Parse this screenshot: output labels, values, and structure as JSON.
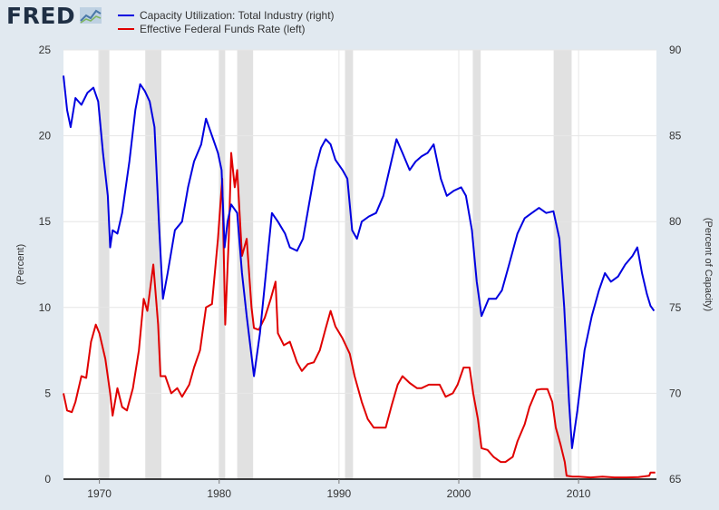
{
  "logo": {
    "text": "FRED"
  },
  "chart_data": {
    "type": "line",
    "grid": true,
    "legend_position": "top-left",
    "x_ticks": [
      1970,
      1980,
      1990,
      2000,
      2010
    ],
    "x_range": [
      1967.0,
      2016.5
    ],
    "left_axis": {
      "label": "(Percent)",
      "range": [
        0,
        25
      ],
      "ticks": [
        0,
        5,
        10,
        15,
        20,
        25
      ]
    },
    "right_axis": {
      "label": "(Percent of Capacity)",
      "range": [
        65,
        90
      ],
      "ticks": [
        65,
        70,
        75,
        80,
        85,
        90
      ]
    },
    "recessions": [
      [
        1969.92,
        1970.83
      ],
      [
        1973.83,
        1975.17
      ],
      [
        1980.0,
        1980.5
      ],
      [
        1981.5,
        1982.83
      ],
      [
        1990.5,
        1991.17
      ],
      [
        2001.17,
        2001.83
      ],
      [
        2007.92,
        2009.42
      ]
    ],
    "series": [
      {
        "name": "Capacity Utilization: Total Industry (right)",
        "axis": "right",
        "color": "#0000e0",
        "points": [
          [
            1967.0,
            88.5
          ],
          [
            1967.3,
            86.5
          ],
          [
            1967.6,
            85.5
          ],
          [
            1968.0,
            87.2
          ],
          [
            1968.5,
            86.8
          ],
          [
            1969.0,
            87.5
          ],
          [
            1969.5,
            87.8
          ],
          [
            1969.9,
            87.0
          ],
          [
            1970.3,
            84.0
          ],
          [
            1970.7,
            81.5
          ],
          [
            1970.9,
            78.5
          ],
          [
            1971.1,
            79.5
          ],
          [
            1971.5,
            79.3
          ],
          [
            1971.9,
            80.5
          ],
          [
            1972.5,
            83.5
          ],
          [
            1973.0,
            86.5
          ],
          [
            1973.4,
            88.0
          ],
          [
            1973.8,
            87.6
          ],
          [
            1974.2,
            87.0
          ],
          [
            1974.6,
            85.5
          ],
          [
            1975.0,
            79.5
          ],
          [
            1975.3,
            75.5
          ],
          [
            1975.7,
            77.0
          ],
          [
            1976.3,
            79.5
          ],
          [
            1976.9,
            80.0
          ],
          [
            1977.4,
            82.0
          ],
          [
            1977.9,
            83.5
          ],
          [
            1978.5,
            84.5
          ],
          [
            1978.9,
            86.0
          ],
          [
            1979.4,
            85.0
          ],
          [
            1979.9,
            84.0
          ],
          [
            1980.2,
            83.0
          ],
          [
            1980.45,
            78.5
          ],
          [
            1980.7,
            80.0
          ],
          [
            1981.0,
            81.0
          ],
          [
            1981.5,
            80.5
          ],
          [
            1981.9,
            77.0
          ],
          [
            1982.3,
            74.5
          ],
          [
            1982.9,
            71.0
          ],
          [
            1983.4,
            73.5
          ],
          [
            1983.9,
            77.0
          ],
          [
            1984.4,
            80.5
          ],
          [
            1984.9,
            80.0
          ],
          [
            1985.5,
            79.3
          ],
          [
            1985.9,
            78.5
          ],
          [
            1986.5,
            78.3
          ],
          [
            1987.0,
            79.0
          ],
          [
            1987.5,
            81.0
          ],
          [
            1988.0,
            83.0
          ],
          [
            1988.5,
            84.3
          ],
          [
            1988.9,
            84.8
          ],
          [
            1989.3,
            84.5
          ],
          [
            1989.7,
            83.6
          ],
          [
            1990.3,
            83.0
          ],
          [
            1990.7,
            82.5
          ],
          [
            1991.1,
            79.5
          ],
          [
            1991.5,
            79.0
          ],
          [
            1991.9,
            80.0
          ],
          [
            1992.5,
            80.3
          ],
          [
            1993.1,
            80.5
          ],
          [
            1993.7,
            81.5
          ],
          [
            1994.2,
            83.0
          ],
          [
            1994.8,
            84.8
          ],
          [
            1995.3,
            84.0
          ],
          [
            1995.9,
            83.0
          ],
          [
            1996.4,
            83.5
          ],
          [
            1996.9,
            83.8
          ],
          [
            1997.4,
            84.0
          ],
          [
            1997.9,
            84.5
          ],
          [
            1998.5,
            82.5
          ],
          [
            1999.0,
            81.5
          ],
          [
            1999.6,
            81.8
          ],
          [
            2000.2,
            82.0
          ],
          [
            2000.6,
            81.5
          ],
          [
            2001.1,
            79.5
          ],
          [
            2001.5,
            76.5
          ],
          [
            2001.9,
            74.5
          ],
          [
            2002.5,
            75.5
          ],
          [
            2003.1,
            75.5
          ],
          [
            2003.6,
            76.0
          ],
          [
            2004.2,
            77.5
          ],
          [
            2004.9,
            79.3
          ],
          [
            2005.5,
            80.2
          ],
          [
            2006.1,
            80.5
          ],
          [
            2006.7,
            80.8
          ],
          [
            2007.3,
            80.5
          ],
          [
            2007.9,
            80.6
          ],
          [
            2008.4,
            79.0
          ],
          [
            2008.8,
            75.0
          ],
          [
            2009.2,
            69.5
          ],
          [
            2009.45,
            66.8
          ],
          [
            2009.9,
            69.0
          ],
          [
            2010.5,
            72.5
          ],
          [
            2011.1,
            74.5
          ],
          [
            2011.7,
            76.0
          ],
          [
            2012.2,
            77.0
          ],
          [
            2012.7,
            76.5
          ],
          [
            2013.3,
            76.8
          ],
          [
            2013.9,
            77.5
          ],
          [
            2014.5,
            78.0
          ],
          [
            2014.9,
            78.5
          ],
          [
            2015.3,
            77.0
          ],
          [
            2015.7,
            75.8
          ],
          [
            2016.0,
            75.1
          ],
          [
            2016.3,
            74.8
          ]
        ]
      },
      {
        "name": "Effective Federal Funds Rate (left)",
        "axis": "left",
        "color": "#e00000",
        "points": [
          [
            1967.0,
            5.0
          ],
          [
            1967.3,
            4.0
          ],
          [
            1967.7,
            3.9
          ],
          [
            1968.0,
            4.5
          ],
          [
            1968.5,
            6.0
          ],
          [
            1968.9,
            5.9
          ],
          [
            1969.3,
            8.0
          ],
          [
            1969.7,
            9.0
          ],
          [
            1970.0,
            8.5
          ],
          [
            1970.5,
            7.0
          ],
          [
            1970.9,
            5.0
          ],
          [
            1971.1,
            3.7
          ],
          [
            1971.5,
            5.3
          ],
          [
            1971.9,
            4.2
          ],
          [
            1972.3,
            4.0
          ],
          [
            1972.8,
            5.3
          ],
          [
            1973.3,
            7.5
          ],
          [
            1973.7,
            10.5
          ],
          [
            1974.0,
            9.8
          ],
          [
            1974.5,
            12.5
          ],
          [
            1974.9,
            9.0
          ],
          [
            1975.1,
            6.0
          ],
          [
            1975.5,
            6.0
          ],
          [
            1976.0,
            5.0
          ],
          [
            1976.5,
            5.3
          ],
          [
            1976.9,
            4.8
          ],
          [
            1977.5,
            5.5
          ],
          [
            1977.9,
            6.5
          ],
          [
            1978.4,
            7.5
          ],
          [
            1978.9,
            10.0
          ],
          [
            1979.4,
            10.2
          ],
          [
            1979.9,
            14.0
          ],
          [
            1980.25,
            17.5
          ],
          [
            1980.5,
            9.0
          ],
          [
            1980.8,
            14.0
          ],
          [
            1981.0,
            19.0
          ],
          [
            1981.3,
            17.0
          ],
          [
            1981.5,
            18.0
          ],
          [
            1981.9,
            13.0
          ],
          [
            1982.3,
            14.0
          ],
          [
            1982.7,
            10.0
          ],
          [
            1982.9,
            8.8
          ],
          [
            1983.3,
            8.7
          ],
          [
            1983.8,
            9.4
          ],
          [
            1984.3,
            10.5
          ],
          [
            1984.7,
            11.5
          ],
          [
            1984.9,
            8.5
          ],
          [
            1985.4,
            7.8
          ],
          [
            1985.9,
            8.0
          ],
          [
            1986.5,
            6.8
          ],
          [
            1986.9,
            6.3
          ],
          [
            1987.4,
            6.7
          ],
          [
            1987.9,
            6.8
          ],
          [
            1988.4,
            7.5
          ],
          [
            1988.9,
            8.8
          ],
          [
            1989.3,
            9.8
          ],
          [
            1989.7,
            8.9
          ],
          [
            1990.3,
            8.2
          ],
          [
            1990.9,
            7.3
          ],
          [
            1991.3,
            6.0
          ],
          [
            1991.9,
            4.5
          ],
          [
            1992.4,
            3.5
          ],
          [
            1992.9,
            3.0
          ],
          [
            1993.5,
            3.0
          ],
          [
            1993.9,
            3.0
          ],
          [
            1994.4,
            4.3
          ],
          [
            1994.9,
            5.5
          ],
          [
            1995.3,
            6.0
          ],
          [
            1995.9,
            5.6
          ],
          [
            1996.5,
            5.3
          ],
          [
            1996.9,
            5.3
          ],
          [
            1997.5,
            5.5
          ],
          [
            1997.9,
            5.5
          ],
          [
            1998.4,
            5.5
          ],
          [
            1998.9,
            4.8
          ],
          [
            1999.5,
            5.0
          ],
          [
            1999.9,
            5.5
          ],
          [
            2000.4,
            6.5
          ],
          [
            2000.9,
            6.5
          ],
          [
            2001.2,
            5.0
          ],
          [
            2001.6,
            3.5
          ],
          [
            2001.9,
            1.8
          ],
          [
            2002.4,
            1.7
          ],
          [
            2002.9,
            1.3
          ],
          [
            2003.5,
            1.0
          ],
          [
            2003.9,
            1.0
          ],
          [
            2004.5,
            1.3
          ],
          [
            2004.9,
            2.2
          ],
          [
            2005.5,
            3.2
          ],
          [
            2005.9,
            4.2
          ],
          [
            2006.5,
            5.2
          ],
          [
            2006.9,
            5.25
          ],
          [
            2007.4,
            5.25
          ],
          [
            2007.8,
            4.5
          ],
          [
            2008.1,
            3.0
          ],
          [
            2008.5,
            2.0
          ],
          [
            2008.85,
            1.0
          ],
          [
            2009.0,
            0.2
          ],
          [
            2009.5,
            0.15
          ],
          [
            2010.0,
            0.15
          ],
          [
            2011.0,
            0.1
          ],
          [
            2012.0,
            0.15
          ],
          [
            2013.0,
            0.1
          ],
          [
            2014.0,
            0.1
          ],
          [
            2015.0,
            0.12
          ],
          [
            2015.9,
            0.2
          ],
          [
            2016.0,
            0.38
          ],
          [
            2016.4,
            0.38
          ]
        ]
      }
    ]
  }
}
